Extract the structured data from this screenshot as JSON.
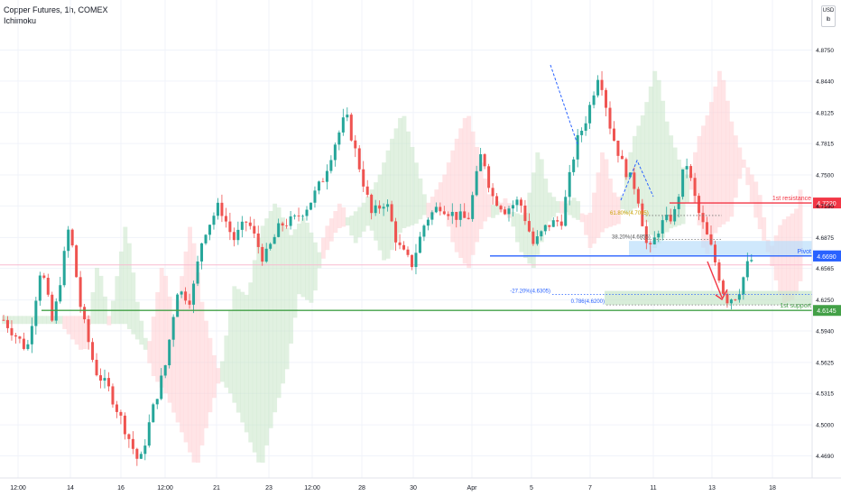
{
  "header": {
    "title": "Copper Futures, 1h, COMEX",
    "indicator": "Ichimoku"
  },
  "currency_box": {
    "top": "USD",
    "bottom": "lb"
  },
  "colors": {
    "up": "#26a69a",
    "down": "#ef5350",
    "resistance": "#f23645",
    "pivot": "#2962ff",
    "support": "#43a047",
    "fib": "#2962ff",
    "arrow": "#f23645",
    "cloud_bull": "#c8e6c9",
    "cloud_bear": "#ffcdd2"
  },
  "chart_data": {
    "type": "candlestick",
    "title": "Copper Futures, 1h, COMEX",
    "indicator": "Ichimoku",
    "ylim": [
      4.44,
      4.88
    ],
    "y_ticks": [
      "4.8750",
      "4.8440",
      "4.8125",
      "4.7815",
      "4.7500",
      "4.7190",
      "4.6875",
      "4.6565",
      "4.6250",
      "4.5940",
      "4.5625",
      "4.5315",
      "4.5000",
      "4.4690"
    ],
    "x_ticks": [
      "12:00",
      "14",
      "16",
      "12:00",
      "21",
      "23",
      "12:00",
      "28",
      "30",
      "Apr",
      "5",
      "7",
      "11",
      "13",
      "18"
    ],
    "price_path": [
      [
        0,
        4.605
      ],
      [
        1,
        4.575
      ],
      [
        1.6,
        4.66
      ],
      [
        2.1,
        4.6
      ],
      [
        2.8,
        4.7
      ],
      [
        3.3,
        4.615
      ],
      [
        3.9,
        4.555
      ],
      [
        4.5,
        4.535
      ],
      [
        5.2,
        4.495
      ],
      [
        5.8,
        4.46
      ],
      [
        6.3,
        4.51
      ],
      [
        6.9,
        4.56
      ],
      [
        7.4,
        4.635
      ],
      [
        8.0,
        4.625
      ],
      [
        8.5,
        4.69
      ],
      [
        9.2,
        4.72
      ],
      [
        9.8,
        4.685
      ],
      [
        10.4,
        4.705
      ],
      [
        11.1,
        4.665
      ],
      [
        11.8,
        4.7
      ],
      [
        12.4,
        4.705
      ],
      [
        13.0,
        4.72
      ],
      [
        13.6,
        4.745
      ],
      [
        14.1,
        4.78
      ],
      [
        14.6,
        4.81
      ],
      [
        15.1,
        4.765
      ],
      [
        15.7,
        4.71
      ],
      [
        16.3,
        4.725
      ],
      [
        16.8,
        4.68
      ],
      [
        17.4,
        4.66
      ],
      [
        18.0,
        4.705
      ],
      [
        18.6,
        4.72
      ],
      [
        19.2,
        4.71
      ],
      [
        19.8,
        4.705
      ],
      [
        20.4,
        4.775
      ],
      [
        20.8,
        4.73
      ],
      [
        21.4,
        4.715
      ],
      [
        22.0,
        4.725
      ],
      [
        22.6,
        4.68
      ],
      [
        23.2,
        4.7
      ],
      [
        23.8,
        4.705
      ],
      [
        24.4,
        4.78
      ],
      [
        24.9,
        4.81
      ],
      [
        25.4,
        4.855
      ],
      [
        25.9,
        4.795
      ],
      [
        26.4,
        4.76
      ],
      [
        27.0,
        4.735
      ],
      [
        27.5,
        4.67
      ],
      [
        28.0,
        4.7
      ],
      [
        28.6,
        4.71
      ],
      [
        29.1,
        4.765
      ],
      [
        29.6,
        4.715
      ],
      [
        30.2,
        4.675
      ],
      [
        30.8,
        4.625
      ],
      [
        31.3,
        4.63
      ],
      [
        31.8,
        4.665
      ]
    ],
    "levels": [
      {
        "name": "1st resistance",
        "value": "4.7220",
        "price": 4.722
      },
      {
        "name": "Pivot",
        "value": "4.6690",
        "price": 4.669
      },
      {
        "name": "1st support",
        "value": "4.6145",
        "price": 4.6145
      }
    ],
    "last_price": "4.6690",
    "fib_labels": [
      "-27.20%(4.6305)",
      "0.786(4.6200)",
      "38.20%(4.6855)",
      "61.80%(4.7095)"
    ]
  }
}
